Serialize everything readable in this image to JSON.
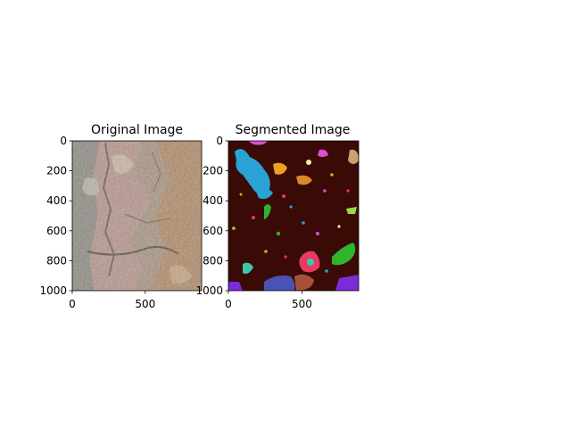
{
  "figure": {
    "background": "#ffffff"
  },
  "chart_data": [
    {
      "type": "image",
      "title": "Original Image",
      "xlabel": "",
      "ylabel": "",
      "xlim": [
        0,
        886
      ],
      "ylim": [
        1000,
        0
      ],
      "xticks": [
        0,
        500
      ],
      "yticks": [
        0,
        200,
        400,
        600,
        800,
        1000
      ],
      "xtick_labels": [
        "0",
        "500"
      ],
      "ytick_labels": [
        "0",
        "200",
        "400",
        "600",
        "800",
        "1000"
      ],
      "content": "aerial photo of rocky desert terrain",
      "palette": {
        "base": "#a89582",
        "light": "#c9b7a3",
        "grey": "#8f8c84",
        "dark": "#6f6258",
        "pink": "#b9978f",
        "tan": "#b38a63"
      }
    },
    {
      "type": "image",
      "title": "Segmented Image",
      "xlabel": "",
      "ylabel": "",
      "xlim": [
        0,
        886
      ],
      "ylim": [
        1000,
        0
      ],
      "xticks": [
        0,
        500
      ],
      "yticks": [
        0,
        200,
        400,
        600,
        800,
        1000
      ],
      "xtick_labels": [
        "0",
        "500"
      ],
      "ytick_labels": [
        "0",
        "200",
        "400",
        "600",
        "800",
        "1000"
      ],
      "content": "segmentation label map with colored regions",
      "background_color": "#3a0a06",
      "segment_colors": [
        "#29a3d6",
        "#4a52b5",
        "#7d2bd9",
        "#e83a63",
        "#2fb52b",
        "#f0a020",
        "#c9a06e",
        "#d94fd6",
        "#f2f2a0",
        "#3cc9a8",
        "#a84f3a",
        "#9ad94f"
      ]
    }
  ]
}
